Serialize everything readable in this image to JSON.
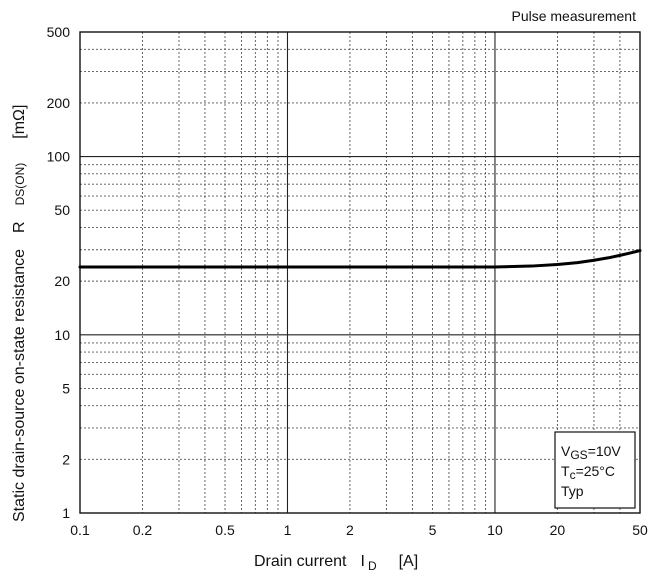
{
  "chart_data": {
    "type": "line",
    "title": "Pulse measurement",
    "xscale": "log",
    "yscale": "log",
    "xlim": [
      0.1,
      50
    ],
    "ylim": [
      1,
      500
    ],
    "x_ticks": [
      0.1,
      0.2,
      0.5,
      1,
      2,
      5,
      10,
      20,
      50
    ],
    "x_tick_labels": [
      "0.1",
      "0.2",
      "0.5",
      "1",
      "2",
      "5",
      "10",
      "20",
      "50"
    ],
    "y_ticks": [
      1,
      2,
      5,
      10,
      20,
      50,
      100,
      200,
      500
    ],
    "y_tick_labels": [
      "1",
      "2",
      "5",
      "10",
      "20",
      "50",
      "100",
      "200",
      "500"
    ],
    "xlabel": {
      "main": "Drain current",
      "symbol": "I",
      "subscript": "D",
      "unit": "[A]"
    },
    "ylabel": {
      "main": "Static drain-source on-state resistance",
      "symbol": "R",
      "subscript": "DS(ON)",
      "unit": "[mΩ]"
    },
    "grid": true,
    "series": [
      {
        "x": [
          0.1,
          0.2,
          0.5,
          1,
          2,
          5,
          10,
          15,
          20,
          25,
          30,
          35,
          40,
          45,
          50
        ],
        "y": [
          24,
          24,
          24,
          24,
          24,
          24,
          24,
          24.3,
          24.8,
          25.4,
          26.2,
          27,
          27.9,
          28.8,
          29.7
        ],
        "color": "#000000"
      }
    ],
    "annotation_box": {
      "position": "bottom-right",
      "lines": [
        {
          "main": "V",
          "sub": "GS",
          "rest": "=10V"
        },
        {
          "main": "T",
          "sub": "c",
          "rest": "=25°C"
        },
        {
          "main": "Typ",
          "sub": "",
          "rest": ""
        }
      ]
    }
  }
}
